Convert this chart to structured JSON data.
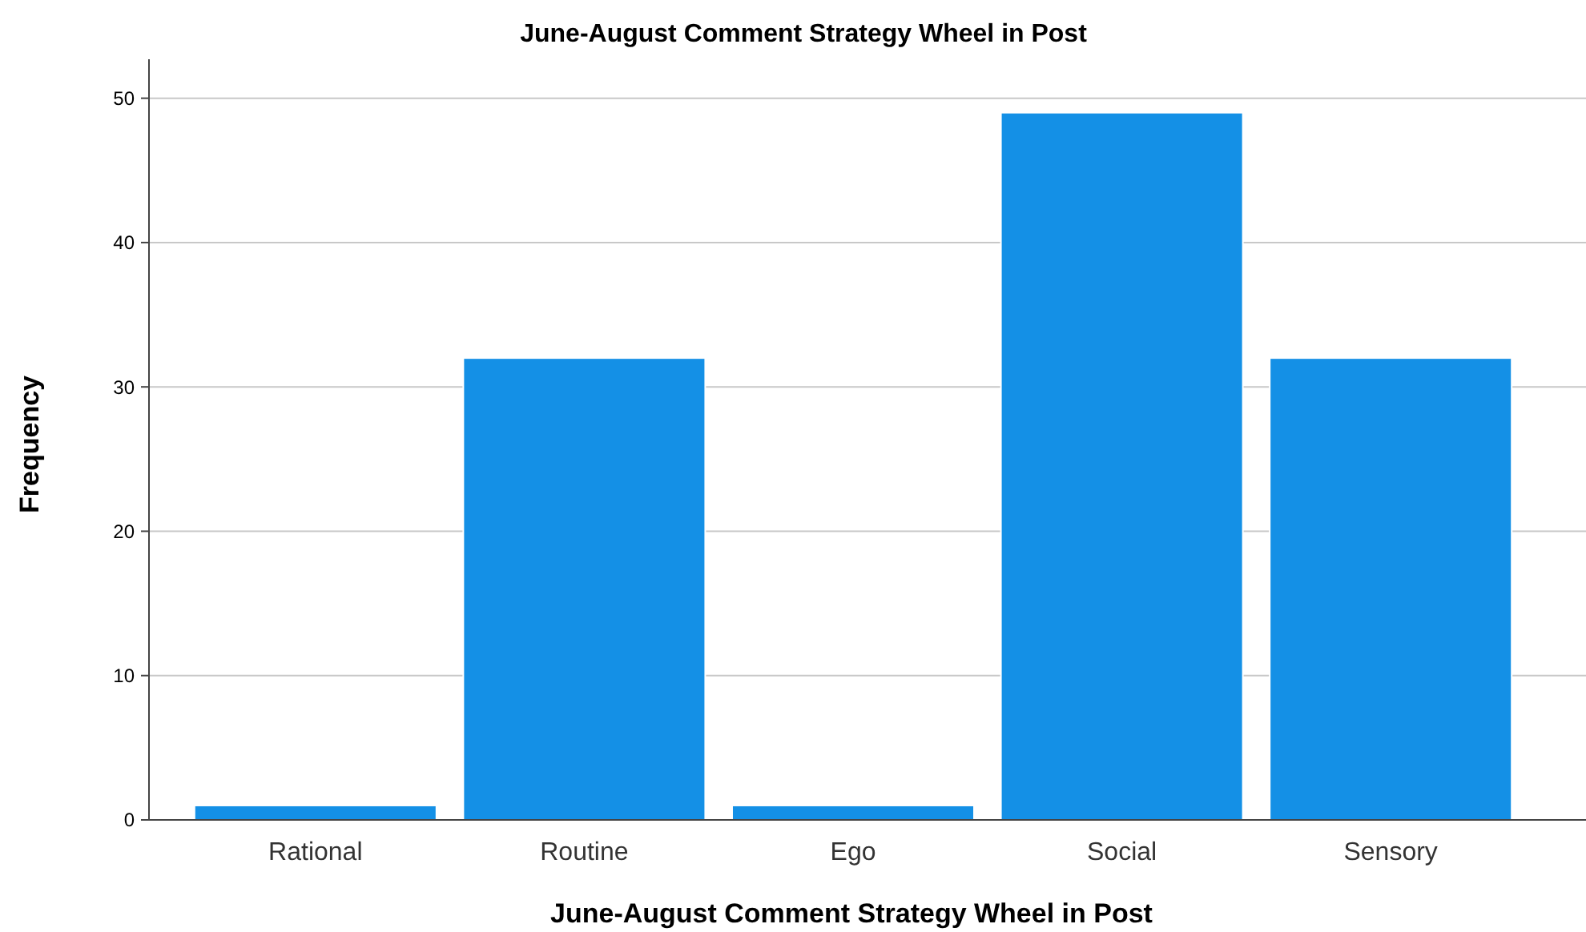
{
  "chart_data": {
    "type": "bar",
    "title": "June-August Comment Strategy Wheel in Post",
    "xlabel": "June-August Comment Strategy Wheel in Post",
    "ylabel": "Frequency",
    "categories": [
      "Rational",
      "Routine",
      "Ego",
      "Social",
      "Sensory"
    ],
    "values": [
      1,
      32,
      1,
      49,
      32
    ],
    "color": "#1490e6",
    "ylim": [
      0,
      52.7
    ],
    "yticks": [
      0,
      10,
      20,
      30,
      40,
      50
    ],
    "grid": "y"
  }
}
